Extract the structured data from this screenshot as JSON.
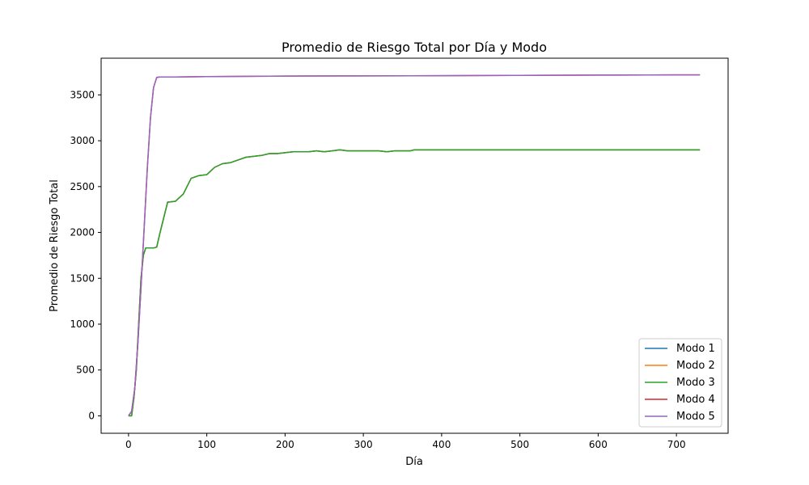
{
  "chart_data": {
    "type": "line",
    "title": "Promedio de Riesgo Total por Día y Modo",
    "xlabel": "Día",
    "ylabel": "Promedio de Riesgo Total",
    "xlim": [
      -35,
      766
    ],
    "ylim": [
      -190,
      3900
    ],
    "xticks": [
      0,
      100,
      200,
      300,
      400,
      500,
      600,
      700
    ],
    "yticks": [
      0,
      500,
      1000,
      1500,
      2000,
      2500,
      3000,
      3500
    ],
    "grid": false,
    "legend_position": "lower-right",
    "series": [
      {
        "name": "Modo 1",
        "color": "#1f77b4",
        "x": [
          0,
          4,
          7,
          10,
          13,
          16,
          19,
          22,
          25,
          28,
          32,
          36,
          40,
          50,
          60,
          70,
          80,
          90,
          100,
          110,
          120,
          130,
          140,
          150,
          160,
          170,
          180,
          190,
          200,
          210,
          220,
          230,
          240,
          250,
          260,
          270,
          280,
          290,
          300,
          310,
          320,
          330,
          340,
          350,
          360,
          365,
          400,
          500,
          600,
          700,
          730
        ],
        "y": [
          0,
          0,
          200,
          500,
          1000,
          1500,
          1750,
          1830,
          1830,
          1830,
          1830,
          1840,
          1990,
          2330,
          2340,
          2420,
          2590,
          2620,
          2630,
          2710,
          2750,
          2760,
          2790,
          2820,
          2830,
          2840,
          2860,
          2860,
          2870,
          2880,
          2880,
          2880,
          2890,
          2880,
          2890,
          2900,
          2890,
          2890,
          2890,
          2890,
          2890,
          2880,
          2890,
          2890,
          2890,
          2900,
          2900,
          2900,
          2900,
          2900,
          2900
        ]
      },
      {
        "name": "Modo 2",
        "color": "#ff7f0e",
        "x": [
          0,
          4,
          7,
          10,
          13,
          16,
          19,
          22,
          25,
          28,
          32,
          36,
          40,
          50,
          60,
          70,
          80,
          90,
          100,
          110,
          120,
          130,
          140,
          150,
          160,
          170,
          180,
          190,
          200,
          210,
          220,
          230,
          240,
          250,
          260,
          270,
          280,
          290,
          300,
          310,
          320,
          330,
          340,
          350,
          360,
          365,
          400,
          500,
          600,
          700,
          730
        ],
        "y": [
          0,
          0,
          200,
          500,
          1000,
          1500,
          1750,
          1830,
          1830,
          1830,
          1830,
          1840,
          1990,
          2330,
          2340,
          2420,
          2590,
          2620,
          2630,
          2710,
          2750,
          2760,
          2790,
          2820,
          2830,
          2840,
          2860,
          2860,
          2870,
          2880,
          2880,
          2880,
          2890,
          2880,
          2890,
          2900,
          2890,
          2890,
          2890,
          2890,
          2890,
          2880,
          2890,
          2890,
          2890,
          2900,
          2900,
          2900,
          2900,
          2900,
          2900
        ]
      },
      {
        "name": "Modo 3",
        "color": "#2ca02c",
        "x": [
          0,
          4,
          7,
          10,
          13,
          16,
          19,
          22,
          25,
          28,
          32,
          36,
          40,
          50,
          60,
          70,
          80,
          90,
          100,
          110,
          120,
          130,
          140,
          150,
          160,
          170,
          180,
          190,
          200,
          210,
          220,
          230,
          240,
          250,
          260,
          270,
          280,
          290,
          300,
          310,
          320,
          330,
          340,
          350,
          360,
          365,
          400,
          500,
          600,
          700,
          730
        ],
        "y": [
          0,
          0,
          200,
          500,
          1000,
          1500,
          1750,
          1830,
          1830,
          1830,
          1830,
          1840,
          1990,
          2330,
          2340,
          2420,
          2590,
          2620,
          2630,
          2710,
          2750,
          2760,
          2790,
          2820,
          2830,
          2840,
          2860,
          2860,
          2870,
          2880,
          2880,
          2880,
          2890,
          2880,
          2890,
          2900,
          2890,
          2890,
          2890,
          2890,
          2890,
          2880,
          2890,
          2890,
          2890,
          2900,
          2900,
          2900,
          2900,
          2900,
          2900
        ]
      },
      {
        "name": "Modo 4",
        "color": "#d62728",
        "x": [
          0,
          4,
          8,
          12,
          16,
          20,
          24,
          28,
          32,
          36,
          40,
          60,
          100,
          200,
          300,
          400,
          500,
          600,
          700,
          730
        ],
        "y": [
          0,
          50,
          300,
          800,
          1400,
          2050,
          2700,
          3250,
          3580,
          3690,
          3695,
          3695,
          3700,
          3705,
          3707,
          3710,
          3713,
          3716,
          3718,
          3718
        ]
      },
      {
        "name": "Modo 5",
        "color": "#9467bd",
        "x": [
          0,
          4,
          8,
          12,
          16,
          20,
          24,
          28,
          32,
          36,
          40,
          60,
          100,
          200,
          300,
          400,
          500,
          600,
          700,
          730
        ],
        "y": [
          0,
          50,
          300,
          800,
          1400,
          2050,
          2700,
          3250,
          3580,
          3690,
          3695,
          3695,
          3700,
          3705,
          3707,
          3710,
          3713,
          3716,
          3718,
          3718
        ]
      }
    ]
  }
}
